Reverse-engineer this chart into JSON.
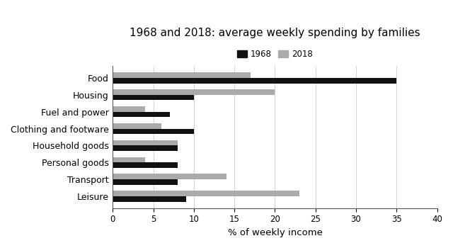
{
  "title": "1968 and 2018: average weekly spending by families",
  "categories": [
    "Food",
    "Housing",
    "Fuel and power",
    "Clothing and footware",
    "Household goods",
    "Personal goods",
    "Transport",
    "Leisure"
  ],
  "values_1968": [
    35,
    10,
    7,
    10,
    8,
    8,
    8,
    9
  ],
  "values_2018": [
    17,
    20,
    4,
    6,
    8,
    4,
    14,
    23
  ],
  "color_1968": "#111111",
  "color_2018": "#aaaaaa",
  "xlabel": "% of weekly income",
  "xlim": [
    0,
    40
  ],
  "xticks": [
    0,
    5,
    10,
    15,
    20,
    25,
    30,
    35,
    40
  ],
  "legend_labels": [
    "1968",
    "2018"
  ],
  "bar_height": 0.32,
  "background_color": "#ffffff",
  "title_fontsize": 11,
  "label_fontsize": 9,
  "tick_fontsize": 8.5
}
